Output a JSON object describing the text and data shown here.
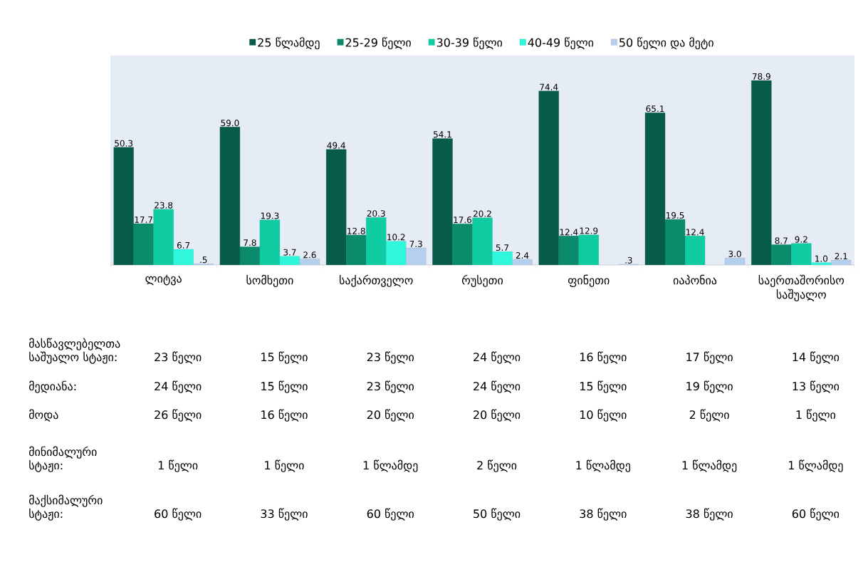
{
  "chart_data": {
    "type": "bar",
    "categories": [
      "ლიტვა",
      "სომხეთი",
      "საქართველო",
      "რუსეთი",
      "ფინეთი",
      "იაპონია",
      "საერთაშორისო საშუალო"
    ],
    "series": [
      {
        "name": "25 წლამდე",
        "color": "#065c48",
        "values": [
          50.3,
          59.0,
          49.4,
          54.1,
          74.4,
          65.1,
          78.9
        ],
        "value_labels": [
          "50.3",
          "59.0",
          "49.4",
          "54.1",
          "74.4",
          "65.1",
          "78.9"
        ]
      },
      {
        "name": "25-29 წელი",
        "color": "#0a8b6b",
        "values": [
          17.7,
          7.8,
          12.8,
          17.6,
          12.4,
          19.5,
          8.7
        ],
        "value_labels": [
          "17.7",
          "7.8",
          "12.8",
          "17.6",
          "12.4",
          "19.5",
          "8.7"
        ]
      },
      {
        "name": "30-39 წელი",
        "color": "#0fcca2",
        "values": [
          23.8,
          19.3,
          20.3,
          20.2,
          12.9,
          12.4,
          9.2
        ],
        "value_labels": [
          "23.8",
          "19.3",
          "20.3",
          "20.2",
          "12.9",
          "12.4",
          "9.2"
        ]
      },
      {
        "name": "40-49 წელი",
        "color": "#2ef7dc",
        "values": [
          6.7,
          3.7,
          10.2,
          5.7,
          null,
          null,
          1.0
        ],
        "value_labels": [
          "6.7",
          "3.7",
          "10.2",
          "5.7",
          null,
          null,
          "1.0"
        ]
      },
      {
        "name": "50 წელი და მეტი",
        "color": "#b5cfee",
        "values": [
          0.5,
          2.6,
          7.3,
          2.4,
          0.3,
          3.0,
          2.1
        ],
        "value_labels": [
          ".5",
          "2.6",
          "7.3",
          "2.4",
          ".3",
          "3.0",
          "2.1"
        ]
      }
    ],
    "legend": "top",
    "annotations": [
      "მასწავლებელთა საშუალო სტაჟი:",
      "23 წელი",
      "15 წელი",
      "23 წელი",
      "24 წელი",
      "16 წელი",
      "17 წელი",
      "14 წელი",
      "მედიანა:",
      "24 წელი",
      "15 წელი",
      "23 წელი",
      "24 წელი",
      "15 წელი",
      "19 წელი",
      "13 წელი",
      "მოდა",
      "26 წელი",
      "16 წელი",
      "20 წელი",
      "20 წელი",
      "10 წელი",
      "2 წელი",
      "1 წელი",
      "მინიმალური სტაჟი:",
      "1 წელი",
      "1 წელი",
      "1 წლამდე",
      "2 წელი",
      "1 წლამდე",
      "1 წლამდე",
      "1 წლამდე",
      "მაქსიმალური სტაჟი:",
      "60 წელი",
      "33 წელი",
      "60 წელი",
      "50 წელი",
      "38 წელი",
      "38 წელი",
      "60 წელი"
    ]
  }
}
